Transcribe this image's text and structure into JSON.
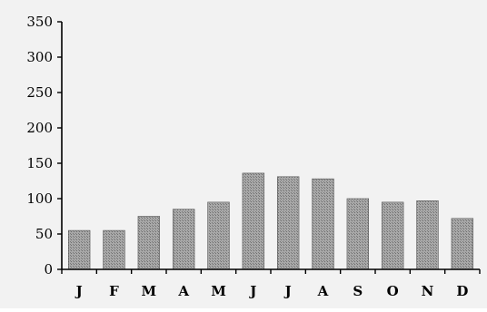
{
  "chart_data": {
    "type": "bar",
    "categories": [
      "J",
      "F",
      "M",
      "A",
      "M",
      "J",
      "J",
      "A",
      "S",
      "O",
      "N",
      "D"
    ],
    "values": [
      55,
      55,
      75,
      85,
      95,
      136,
      131,
      128,
      100,
      95,
      97,
      72
    ],
    "ylim": [
      0,
      350
    ],
    "yticks": [
      0,
      50,
      100,
      150,
      200,
      250,
      300,
      350
    ],
    "grid": false,
    "legend": "none",
    "bar_fill": "#9a9a9a",
    "bar_stroke": "#555555",
    "background": "#f2f2f2"
  }
}
